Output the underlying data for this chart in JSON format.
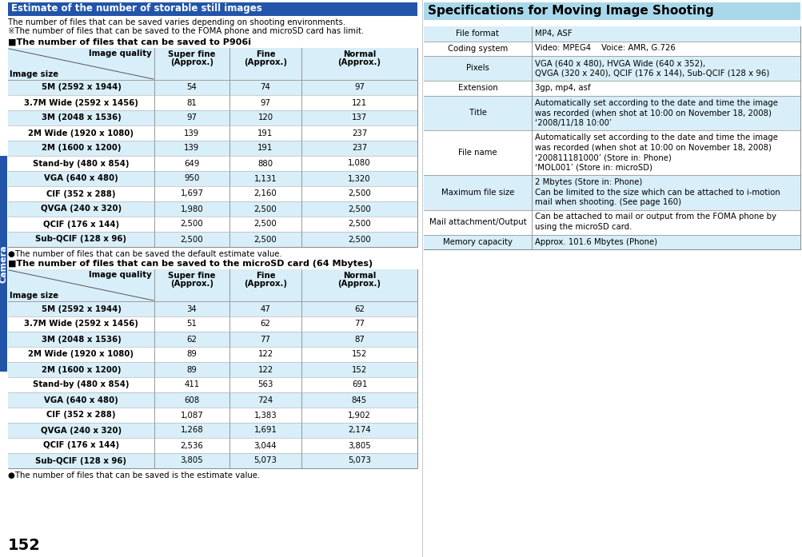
{
  "page_bg": "#ffffff",
  "header1_bg": "#2255AA",
  "header1_text": "Estimate of the number of storable still images",
  "header1_text_color": "#ffffff",
  "header2_bg": "#A8D8EA",
  "header2_text": "Specifications for Moving Image Shooting",
  "header2_text_color": "#000000",
  "table_header_bg": "#D8EEF8",
  "table_row_bg": "#ffffff",
  "intro_text1": "The number of files that can be saved varies depending on shooting environments.",
  "intro_text2": "※The number of files that can be saved to the FOMA phone and microSD card has limit.",
  "section1_title": "■The number of files that can be saved to P906i",
  "section2_title": "■The number of files that can be saved to the microSD card (64 Mbytes)",
  "bullet_note1": "●The number of files that can be saved the default estimate value.",
  "bullet_note2": "●The number of files that can be saved is the estimate value.",
  "page_number": "152",
  "sidebar_text": "Camera",
  "sidebar_bg": "#2255AA",
  "table1_rows": [
    [
      "5M (2592 x 1944)",
      "54",
      "74",
      "97"
    ],
    [
      "3.7M Wide (2592 x 1456)",
      "81",
      "97",
      "121"
    ],
    [
      "3M (2048 x 1536)",
      "97",
      "120",
      "137"
    ],
    [
      "2M Wide (1920 x 1080)",
      "139",
      "191",
      "237"
    ],
    [
      "2M (1600 x 1200)",
      "139",
      "191",
      "237"
    ],
    [
      "Stand-by (480 x 854)",
      "649",
      "880",
      "1,080"
    ],
    [
      "VGA (640 x 480)",
      "950",
      "1,131",
      "1,320"
    ],
    [
      "CIF (352 x 288)",
      "1,697",
      "2,160",
      "2,500"
    ],
    [
      "QVGA (240 x 320)",
      "1,980",
      "2,500",
      "2,500"
    ],
    [
      "QCIF (176 x 144)",
      "2,500",
      "2,500",
      "2,500"
    ],
    [
      "Sub-QCIF (128 x 96)",
      "2,500",
      "2,500",
      "2,500"
    ]
  ],
  "table2_rows": [
    [
      "5M (2592 x 1944)",
      "34",
      "47",
      "62"
    ],
    [
      "3.7M Wide (2592 x 1456)",
      "51",
      "62",
      "77"
    ],
    [
      "3M (2048 x 1536)",
      "62",
      "77",
      "87"
    ],
    [
      "2M Wide (1920 x 1080)",
      "89",
      "122",
      "152"
    ],
    [
      "2M (1600 x 1200)",
      "89",
      "122",
      "152"
    ],
    [
      "Stand-by (480 x 854)",
      "411",
      "563",
      "691"
    ],
    [
      "VGA (640 x 480)",
      "608",
      "724",
      "845"
    ],
    [
      "CIF (352 x 288)",
      "1,087",
      "1,383",
      "1,902"
    ],
    [
      "QVGA (240 x 320)",
      "1,268",
      "1,691",
      "2,174"
    ],
    [
      "QCIF (176 x 144)",
      "2,536",
      "3,044",
      "3,805"
    ],
    [
      "Sub-QCIF (128 x 96)",
      "3,805",
      "5,073",
      "5,073"
    ]
  ],
  "spec_rows": [
    [
      "File format",
      "MP4, ASF",
      1
    ],
    [
      "Coding system",
      "Video: MPEG4    Voice: AMR, G.726",
      1
    ],
    [
      "Pixels",
      "VGA (640 x 480), HVGA Wide (640 x 352),\nQVGA (320 x 240), QCIF (176 x 144), Sub-QCIF (128 x 96)",
      2
    ],
    [
      "Extension",
      "3gp, mp4, asf",
      1
    ],
    [
      "Title",
      "Automatically set according to the date and time the image\nwas recorded (when shot at 10:00 on November 18, 2008)\n‘2008/11/18 10:00’",
      3
    ],
    [
      "File name",
      "Automatically set according to the date and time the image\nwas recorded (when shot at 10:00 on November 18, 2008)\n‘200811181000’ (Store in: Phone)\n‘MOL001’ (Store in: microSD)",
      4
    ],
    [
      "Maximum file size",
      "2 Mbytes (Store in: Phone)\nCan be limited to the size which can be attached to i-motion\nmail when shooting. (See page 160)",
      3
    ],
    [
      "Mail attachment/Output",
      "Can be attached to mail or output from the FOMA phone by\nusing the microSD card.",
      2
    ],
    [
      "Memory capacity",
      "Approx. 101.6 Mbytes (Phone)",
      1
    ]
  ]
}
